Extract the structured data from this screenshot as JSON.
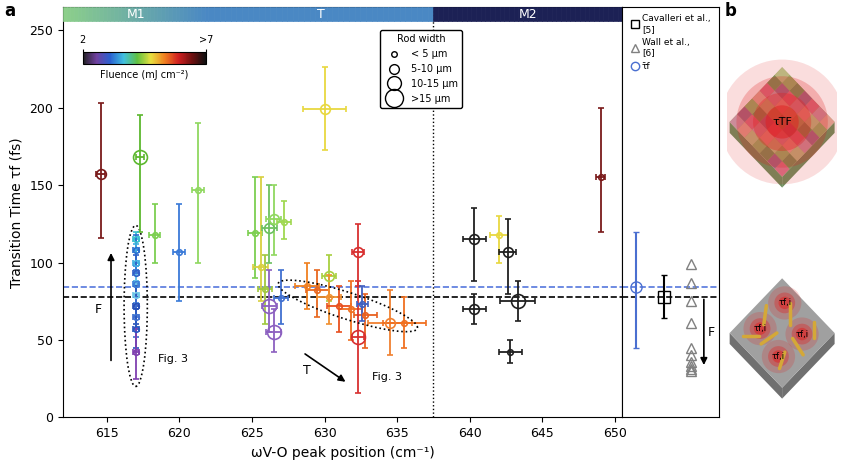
{
  "chart_data": [
    {
      "type": "scatter",
      "panel": "a",
      "xlabel": "ωV-O peak position (cm⁻¹)",
      "ylabel": "Transition Time τf (fs)",
      "xlim": [
        612,
        650.5
      ],
      "xticks": [
        615,
        620,
        625,
        630,
        635,
        640,
        645,
        650
      ],
      "ylim": [
        0,
        265
      ],
      "yticks": [
        0,
        50,
        100,
        150,
        200,
        250
      ],
      "phases": [
        {
          "label": "M1",
          "range": [
            612,
            622
          ],
          "color": "#8ccf8a"
        },
        {
          "label": "T",
          "range": [
            622,
            637.5
          ],
          "color": "#4a88c4"
        },
        {
          "label": "M2",
          "range": [
            637.5,
            650.5
          ],
          "color": "#1c2155"
        }
      ],
      "phase_boundary": 637.5,
      "reference_lines": [
        {
          "y": 84,
          "color": "#5577dd"
        },
        {
          "y": 78,
          "color": "#000000"
        }
      ],
      "colorbar": {
        "label": "Fluence (mJ cm⁻²)",
        "range": [
          2,
          7
        ],
        "ticks": [
          {
            "value": 2,
            "label": "2"
          },
          {
            "value": 7,
            "label": ">7"
          }
        ]
      },
      "rod_width": {
        "title": "Rod width",
        "entries": [
          "< 5 µm",
          "5-10 µm",
          "10-15 µm",
          ">15 µm"
        ]
      },
      "legend": "upper center",
      "annotations": [
        "Fig. 3",
        "Fig. 3",
        "F",
        "T"
      ],
      "points": [
        {
          "x": 614.6,
          "y": 157,
          "y_range": [
            116,
            203
          ],
          "x_err": 0.3,
          "color": "#7a1a1a",
          "rod_width": "5-10 µm"
        },
        {
          "x": 617.3,
          "y": 168,
          "y_range": [
            120,
            195
          ],
          "x_err": 0.3,
          "color": "#5cb82e",
          "rod_width": "10-15 µm"
        },
        {
          "x": 617.0,
          "y": 115,
          "y_range": [
            100,
            120
          ],
          "x_err": 0.2,
          "color": "#38c0d0",
          "rod_width": "< 5 µm"
        },
        {
          "x": 617.0,
          "y": 108,
          "y_range": [
            95,
            118
          ],
          "x_err": 0.2,
          "color": "#2a6fd0",
          "rod_width": "< 5 µm"
        },
        {
          "x": 617.0,
          "y": 100,
          "y_range": [
            88,
            112
          ],
          "x_err": 0.2,
          "color": "#40b0e0",
          "rod_width": "< 5 µm"
        },
        {
          "x": 617.0,
          "y": 93,
          "y_range": [
            80,
            105
          ],
          "x_err": 0.2,
          "color": "#3060c8",
          "rod_width": "< 5 µm"
        },
        {
          "x": 617.0,
          "y": 86,
          "y_range": [
            74,
            98
          ],
          "x_err": 0.2,
          "color": "#3a80d8",
          "rod_width": "< 5 µm"
        },
        {
          "x": 617.0,
          "y": 79,
          "y_range": [
            66,
            92
          ],
          "x_err": 0.2,
          "color": "#70c8e8",
          "rod_width": "< 5 µm"
        },
        {
          "x": 617.0,
          "y": 72,
          "y_range": [
            60,
            85
          ],
          "x_err": 0.2,
          "color": "#2850b8",
          "rod_width": "< 5 µm"
        },
        {
          "x": 617.0,
          "y": 65,
          "y_range": [
            52,
            78
          ],
          "x_err": 0.2,
          "color": "#4070d0",
          "rod_width": "< 5 µm"
        },
        {
          "x": 617.0,
          "y": 57,
          "y_range": [
            45,
            70
          ],
          "x_err": 0.2,
          "color": "#2858c0",
          "rod_width": "< 5 µm"
        },
        {
          "x": 617.0,
          "y": 42,
          "y_range": [
            25,
            58
          ],
          "x_err": 0.2,
          "color": "#8040b0",
          "rod_width": "< 5 µm"
        },
        {
          "x": 618.3,
          "y": 118,
          "y_range": [
            100,
            138
          ],
          "x_err": 0.4,
          "color": "#7ccf50",
          "rod_width": "< 5 µm"
        },
        {
          "x": 620.0,
          "y": 107,
          "y_range": [
            75,
            138
          ],
          "x_err": 0.4,
          "color": "#3a7ad8",
          "rod_width": "< 5 µm"
        },
        {
          "x": 621.3,
          "y": 147,
          "y_range": [
            100,
            190
          ],
          "x_err": 0.4,
          "color": "#90d860",
          "rod_width": "< 5 µm"
        },
        {
          "x": 625.2,
          "y": 119,
          "y_range": [
            90,
            155
          ],
          "x_err": 0.5,
          "color": "#7ccf50",
          "rod_width": "< 5 µm"
        },
        {
          "x": 625.6,
          "y": 97,
          "y_range": [
            75,
            155
          ],
          "x_err": 0.5,
          "color": "#d8d040",
          "rod_width": "< 5 µm"
        },
        {
          "x": 625.9,
          "y": 83,
          "y_range": [
            60,
            105
          ],
          "x_err": 0.5,
          "color": "#a0c840",
          "rod_width": "< 5 µm"
        },
        {
          "x": 626.2,
          "y": 122,
          "y_range": [
            100,
            150
          ],
          "x_err": 0.5,
          "color": "#6cc060",
          "rod_width": "5-10 µm"
        },
        {
          "x": 626.5,
          "y": 128,
          "y_range": [
            105,
            150
          ],
          "x_err": 0.5,
          "color": "#90d860",
          "rod_width": "5-10 µm"
        },
        {
          "x": 627.2,
          "y": 126,
          "y_range": [
            115,
            140
          ],
          "x_err": 0.5,
          "color": "#a0d850",
          "rod_width": "< 5 µm"
        },
        {
          "x": 626.2,
          "y": 72,
          "y_range": [
            55,
            95
          ],
          "x_err": 0.5,
          "color": "#8c60c0",
          "rod_width": "10-15 µm"
        },
        {
          "x": 626.5,
          "y": 55,
          "y_range": [
            42,
            70
          ],
          "x_err": 0.5,
          "color": "#8c60c0",
          "rod_width": "10-15 µm"
        },
        {
          "x": 627.0,
          "y": 77,
          "y_range": [
            60,
            95
          ],
          "x_err": 0.5,
          "color": "#4070d0",
          "rod_width": "< 5 µm"
        },
        {
          "x": 630.0,
          "y": 199,
          "y_range": [
            173,
            226
          ],
          "x_err": 1.5,
          "color": "#e8d840",
          "rod_width": "5-10 µm"
        },
        {
          "x": 630.3,
          "y": 91,
          "y_range": [
            75,
            105
          ],
          "x_err": 0.5,
          "color": "#a8d040",
          "rod_width": "5-10 µm"
        },
        {
          "x": 628.8,
          "y": 85,
          "y_range": [
            70,
            100
          ],
          "x_err": 0.8,
          "color": "#f08020",
          "rod_width": "< 5 µm"
        },
        {
          "x": 629.5,
          "y": 82,
          "y_range": [
            65,
            95
          ],
          "x_err": 0.8,
          "color": "#e86820",
          "rod_width": "< 5 µm"
        },
        {
          "x": 630.3,
          "y": 78,
          "y_range": [
            60,
            92
          ],
          "x_err": 0.8,
          "color": "#f09030",
          "rod_width": "< 5 µm"
        },
        {
          "x": 631.0,
          "y": 72,
          "y_range": [
            55,
            85
          ],
          "x_err": 0.8,
          "color": "#e85020",
          "rod_width": "< 5 µm"
        },
        {
          "x": 631.8,
          "y": 70,
          "y_range": [
            50,
            88
          ],
          "x_err": 0.8,
          "color": "#f07020",
          "rod_width": "< 5 µm"
        },
        {
          "x": 632.8,
          "y": 66,
          "y_range": [
            45,
            80
          ],
          "x_err": 0.8,
          "color": "#e86020",
          "rod_width": "< 5 µm"
        },
        {
          "x": 634.5,
          "y": 61,
          "y_range": [
            40,
            82
          ],
          "x_err": 1.5,
          "color": "#f08030",
          "rod_width": "5-10 µm"
        },
        {
          "x": 635.5,
          "y": 61,
          "y_range": [
            45,
            78
          ],
          "x_err": 1.5,
          "color": "#f07020",
          "rod_width": "< 5 µm"
        },
        {
          "x": 632.3,
          "y": 107,
          "y_range": [
            85,
            125
          ],
          "x_err": 0.4,
          "color": "#d83030",
          "rod_width": "5-10 µm"
        },
        {
          "x": 632.3,
          "y": 52,
          "y_range": [
            16,
            88
          ],
          "x_err": 0.4,
          "color": "#d83030",
          "rod_width": "10-15 µm"
        },
        {
          "x": 632.6,
          "y": 73,
          "y_range": [
            62,
            85
          ],
          "x_err": 0.4,
          "color": "#4060c0",
          "rod_width": "< 5 µm"
        },
        {
          "x": 640.3,
          "y": 115,
          "y_range": [
            88,
            135
          ],
          "x_err": 0.8,
          "color": "#202020",
          "rod_width": "5-10 µm"
        },
        {
          "x": 640.3,
          "y": 70,
          "y_range": [
            60,
            80
          ],
          "x_err": 0.8,
          "color": "#202020",
          "rod_width": "5-10 µm"
        },
        {
          "x": 642.0,
          "y": 118,
          "y_range": [
            100,
            130
          ],
          "x_err": 0.6,
          "color": "#e8d840",
          "rod_width": "< 5 µm"
        },
        {
          "x": 642.6,
          "y": 107,
          "y_range": [
            80,
            128
          ],
          "x_err": 0.6,
          "color": "#202020",
          "rod_width": "5-10 µm"
        },
        {
          "x": 643.3,
          "y": 75,
          "y_range": [
            62,
            88
          ],
          "x_err": 1.2,
          "color": "#202020",
          "rod_width": "10-15 µm"
        },
        {
          "x": 642.8,
          "y": 42,
          "y_range": [
            35,
            50
          ],
          "x_err": 0.8,
          "color": "#202020",
          "rod_width": "< 5 µm"
        },
        {
          "x": 649.0,
          "y": 155,
          "y_range": [
            120,
            200
          ],
          "x_err": 0.3,
          "color": "#7a1a1a",
          "rod_width": "< 5 µm"
        }
      ]
    },
    {
      "type": "scatter",
      "xlim": [
        -0.5,
        3.0
      ],
      "xticks": [],
      "ylim": [
        0,
        265
      ],
      "yticks": [],
      "tick_labels": false,
      "legend": "upper center",
      "annotations": [
        "F"
      ],
      "series": [
        {
          "name": "Cavalleri et al.,\n[5]",
          "marker": "square",
          "color": "#000000",
          "x": [
            1
          ],
          "values": [
            78
          ],
          "y_range": [
            [
              64,
              92
            ]
          ]
        },
        {
          "name": "Wall et al.,\n[6]",
          "marker": "triangle",
          "color": "#808080",
          "x": [
            2,
            2,
            2,
            2,
            2,
            2,
            2,
            2,
            2,
            2
          ],
          "values": [
            99,
            87,
            75,
            61,
            45,
            40,
            36,
            33,
            31,
            30
          ]
        },
        {
          "name": "τ̄f",
          "marker": "circle",
          "color": "#4a6fd0",
          "x": [
            0
          ],
          "values": [
            84
          ],
          "y_range": [
            [
              45,
              120
            ]
          ]
        }
      ]
    }
  ],
  "diagram": {
    "label": "b",
    "top": "τTF",
    "bottom": [
      "τf,i",
      "τf,i",
      "τf,i",
      "τf,i"
    ]
  }
}
